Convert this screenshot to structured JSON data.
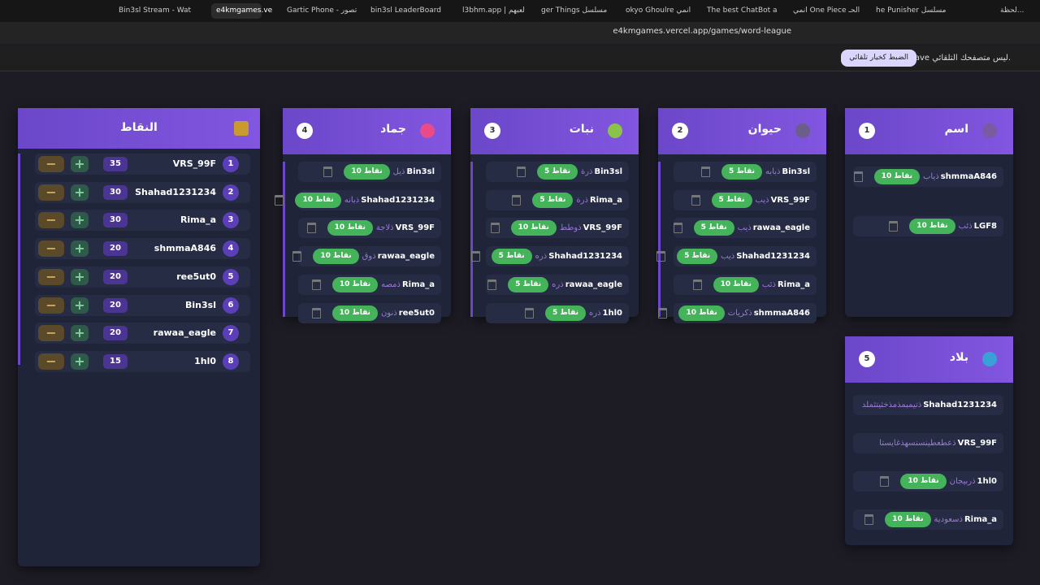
{
  "browser": {
    "tabs": [
      "Bin3sl Stream - Wat",
      "e4kmgames.ve",
      "Gartic Phone - تصور",
      "bin3sl LeaderBoard",
      "l3bhm.app | لعبهم",
      "ger Things مسلسل",
      "okyo Ghoulre انمي",
      "The best ChatBot a",
      "انمي One Piece الحـ",
      "he Punisher مسلسل",
      "لحظة..."
    ],
    "url": "e4kmgames.vercel.app/games/word-league",
    "notification": {
      "text": "Brave ليس متصفحك التلقائي.",
      "button": "الضبط كخيار تلقائي"
    }
  },
  "scoreboard": {
    "title": "النقاط",
    "rows": [
      {
        "rank": 1,
        "name": "VRS_99F",
        "score": 35
      },
      {
        "rank": 2,
        "name": "Shahad1231234",
        "score": 30
      },
      {
        "rank": 3,
        "name": "Rima_a",
        "score": 30
      },
      {
        "rank": 4,
        "name": "shmmaA846",
        "score": 20
      },
      {
        "rank": 5,
        "name": "ree5ut0",
        "score": 20
      },
      {
        "rank": 6,
        "name": "Bin3sl",
        "score": 20
      },
      {
        "rank": 7,
        "name": "rawaa_eagle",
        "score": 20
      },
      {
        "rank": 8,
        "name": "1hl0",
        "score": 15
      }
    ]
  },
  "categories": [
    {
      "title": "جماد",
      "number": 4,
      "entries": [
        {
          "player": "Bin3sl",
          "word": "ذيل",
          "points": "10 نقاط"
        },
        {
          "player": "Shahad1231234",
          "word": "ذبانه",
          "points": "10 نقاط"
        },
        {
          "player": "VRS_99F",
          "word": "ذلاجة",
          "points": "10 نقاط"
        },
        {
          "player": "rawaa_eagle",
          "word": "ذوق",
          "points": "10 نقاط"
        },
        {
          "player": "Rima_a",
          "word": "ذمصه",
          "points": "10 نقاط"
        },
        {
          "player": "ree5ut0",
          "word": "ذنون",
          "points": "10 نقاط"
        }
      ]
    },
    {
      "title": "نبات",
      "number": 3,
      "entries": [
        {
          "player": "Bin3sl",
          "word": "ذرة",
          "points": "5 نقاط"
        },
        {
          "player": "Rima_a",
          "word": "ذرة",
          "points": "5 نقاط"
        },
        {
          "player": "VRS_99F",
          "word": "ذوطط",
          "points": "10 نقاط"
        },
        {
          "player": "Shahad1231234",
          "word": "ذره",
          "points": "5 نقاط"
        },
        {
          "player": "rawaa_eagle",
          "word": "ذره",
          "points": "5 نقاط"
        },
        {
          "player": "1hl0",
          "word": "ذره",
          "points": "5 نقاط"
        }
      ]
    },
    {
      "title": "حيوان",
      "number": 2,
      "entries": [
        {
          "player": "Bin3sl",
          "word": "ذبابه",
          "points": "5 نقاط"
        },
        {
          "player": "VRS_99F",
          "word": "ذيب",
          "points": "5 نقاط"
        },
        {
          "player": "rawaa_eagle",
          "word": "ذيب",
          "points": "5 نقاط"
        },
        {
          "player": "Shahad1231234",
          "word": "ذيب",
          "points": "5 نقاط"
        },
        {
          "player": "Rima_a",
          "word": "ذئب",
          "points": "10 نقاط"
        },
        {
          "player": "shmmaA846",
          "word": "ذكريات",
          "points": "10 نقاط"
        }
      ]
    },
    {
      "title": "اسم",
      "number": 1,
      "entries": [
        {
          "player": "shmmaA846",
          "word": "ذياب",
          "points": "10 نقاط"
        },
        {
          "player": "LGF8",
          "word": "ذئب",
          "points": "10 نقاط"
        }
      ]
    },
    {
      "title": "بلاد",
      "number": 5,
      "entries": [
        {
          "player": "Shahad1231234",
          "word": "ذتيمبمذمذخثيتثملد"
        },
        {
          "player": "VRS_99F",
          "word": "ذعطعطينسنسهذغايستا"
        },
        {
          "player": "1hl0",
          "word": "ذربيجان",
          "points": "10 نقاط"
        },
        {
          "player": "Rima_a",
          "word": "ذسعودية",
          "points": "10 نقاط"
        }
      ]
    }
  ]
}
